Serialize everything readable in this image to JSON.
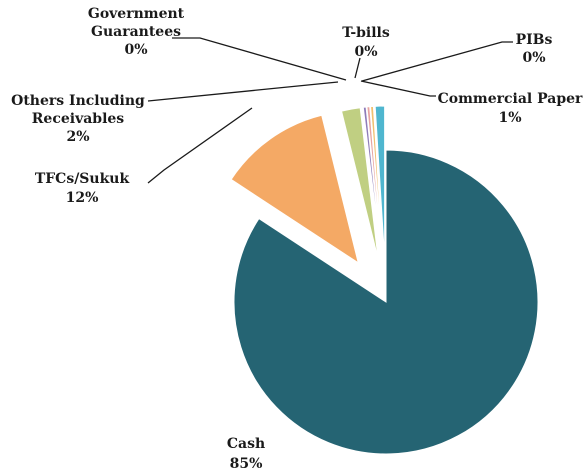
{
  "chart_data": {
    "type": "pie",
    "exploded": true,
    "slices": [
      {
        "name": "Cash",
        "value": 85,
        "label": "85%",
        "color": "#256473"
      },
      {
        "name": "TFCs/Sukuk",
        "value": 12,
        "label": "12%",
        "color": "#f4a965"
      },
      {
        "name": "Others Including Receivables",
        "label_lines": [
          "Others Including",
          "Receivables"
        ],
        "value": 2,
        "label": "2%",
        "color": "#c0cf82"
      },
      {
        "name": "Government Guarantees",
        "label_lines": [
          "Government",
          "Guarantees"
        ],
        "value": 0.3,
        "label": "0%",
        "color": "#8e7cb9"
      },
      {
        "name": "T-bills",
        "value": 0.3,
        "label": "0%",
        "color": "#e8a3a0"
      },
      {
        "name": "PIBs",
        "value": 0.3,
        "label": "0%",
        "color": "#f0c070"
      },
      {
        "name": "Commercial Paper",
        "value": 1,
        "label": "1%",
        "color": "#4fb6cf"
      }
    ]
  }
}
